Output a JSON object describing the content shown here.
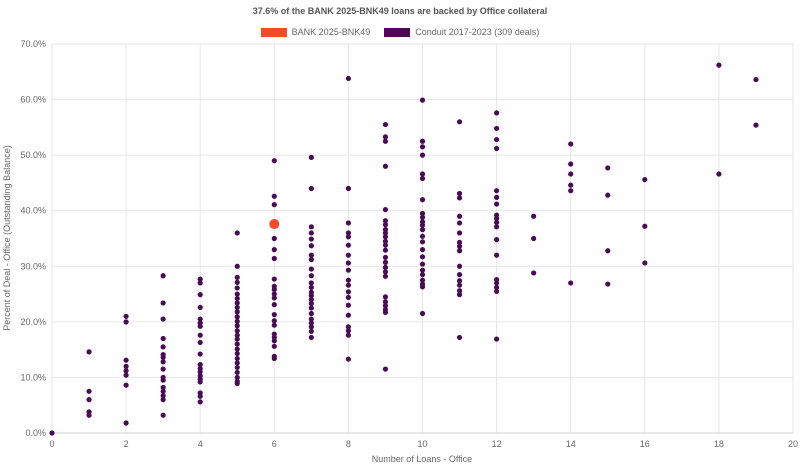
{
  "chart_data": {
    "type": "scatter",
    "title": "37.6% of the BANK 2025-BNK49 loans are backed by Office collateral",
    "xlabel": "Number of Loans - Office",
    "ylabel": "Percent of Deal - Office (Outstanding Balance)",
    "xlim": [
      0,
      20
    ],
    "ylim": [
      0,
      70
    ],
    "x_ticks": [
      "0",
      "2",
      "4",
      "6",
      "8",
      "10",
      "12",
      "14",
      "16",
      "18",
      "20"
    ],
    "y_ticks": [
      "0.0%",
      "10.0%",
      "20.0%",
      "30.0%",
      "40.0%",
      "50.0%",
      "60.0%",
      "70.0%"
    ],
    "grid": true,
    "legend_position": "top",
    "series": [
      {
        "name": "BANK 2025-BNK49",
        "color": "#f4492b",
        "points": [
          [
            6,
            37.6
          ]
        ]
      },
      {
        "name": "Conduit 2017-2023 (309 deals)",
        "color": "#4b0a55",
        "points": [
          [
            0,
            0
          ],
          [
            1,
            14.6
          ],
          [
            1,
            7.5
          ],
          [
            1,
            6.0
          ],
          [
            1,
            3.8
          ],
          [
            1,
            3.2
          ],
          [
            2,
            21.0
          ],
          [
            2,
            20.0
          ],
          [
            2,
            13.1
          ],
          [
            2,
            12.0
          ],
          [
            2,
            11.2
          ],
          [
            2,
            10.4
          ],
          [
            2,
            8.6
          ],
          [
            2,
            1.8
          ],
          [
            3,
            28.3
          ],
          [
            3,
            23.4
          ],
          [
            3,
            20.5
          ],
          [
            3,
            17.0
          ],
          [
            3,
            15.5
          ],
          [
            3,
            14.1
          ],
          [
            3,
            13.6
          ],
          [
            3,
            12.8
          ],
          [
            3,
            11.5
          ],
          [
            3,
            10.0
          ],
          [
            3,
            9.5
          ],
          [
            3,
            8.2
          ],
          [
            3,
            7.5
          ],
          [
            3,
            6.7
          ],
          [
            3,
            6.0
          ],
          [
            3,
            3.2
          ],
          [
            4,
            27.7
          ],
          [
            4,
            27.0
          ],
          [
            4,
            24.9
          ],
          [
            4,
            22.6
          ],
          [
            4,
            20.5
          ],
          [
            4,
            19.8
          ],
          [
            4,
            19.2
          ],
          [
            4,
            17.6
          ],
          [
            4,
            16.3
          ],
          [
            4,
            14.2
          ],
          [
            4,
            12.3
          ],
          [
            4,
            11.6
          ],
          [
            4,
            11.0
          ],
          [
            4,
            10.3
          ],
          [
            4,
            9.7
          ],
          [
            4,
            9.2
          ],
          [
            4,
            7.2
          ],
          [
            4,
            6.6
          ],
          [
            4,
            5.6
          ],
          [
            5,
            36.0
          ],
          [
            5,
            30.0
          ],
          [
            5,
            28.0
          ],
          [
            5,
            27.1
          ],
          [
            5,
            26.1
          ],
          [
            5,
            25.0
          ],
          [
            5,
            24.2
          ],
          [
            5,
            23.4
          ],
          [
            5,
            22.6
          ],
          [
            5,
            21.8
          ],
          [
            5,
            20.9
          ],
          [
            5,
            20.1
          ],
          [
            5,
            19.3
          ],
          [
            5,
            18.4
          ],
          [
            5,
            17.6
          ],
          [
            5,
            16.9
          ],
          [
            5,
            16.0
          ],
          [
            5,
            15.1
          ],
          [
            5,
            14.3
          ],
          [
            5,
            13.4
          ],
          [
            5,
            12.6
          ],
          [
            5,
            11.8
          ],
          [
            5,
            10.9
          ],
          [
            5,
            10.0
          ],
          [
            5,
            9.3
          ],
          [
            5,
            8.9
          ],
          [
            6,
            49.0
          ],
          [
            6,
            42.6
          ],
          [
            6,
            41.1
          ],
          [
            6,
            35.0
          ],
          [
            6,
            33.0
          ],
          [
            6,
            31.4
          ],
          [
            6,
            27.7
          ],
          [
            6,
            26.4
          ],
          [
            6,
            25.8
          ],
          [
            6,
            25.0
          ],
          [
            6,
            24.3
          ],
          [
            6,
            23.1
          ],
          [
            6,
            21.3
          ],
          [
            6,
            20.2
          ],
          [
            6,
            19.4
          ],
          [
            6,
            17.8
          ],
          [
            6,
            17.2
          ],
          [
            6,
            16.6
          ],
          [
            6,
            15.6
          ],
          [
            6,
            13.8
          ],
          [
            6,
            13.4
          ],
          [
            7,
            49.6
          ],
          [
            7,
            44.0
          ],
          [
            7,
            37.1
          ],
          [
            7,
            36.0
          ],
          [
            7,
            34.9
          ],
          [
            7,
            33.7
          ],
          [
            7,
            32.0
          ],
          [
            7,
            31.2
          ],
          [
            7,
            29.5
          ],
          [
            7,
            28.3
          ],
          [
            7,
            27.0
          ],
          [
            7,
            26.2
          ],
          [
            7,
            25.3
          ],
          [
            7,
            24.7
          ],
          [
            7,
            24.0
          ],
          [
            7,
            23.3
          ],
          [
            7,
            22.5
          ],
          [
            7,
            21.5
          ],
          [
            7,
            20.5
          ],
          [
            7,
            19.8
          ],
          [
            7,
            19.1
          ],
          [
            7,
            18.3
          ],
          [
            7,
            17.2
          ],
          [
            8,
            63.8
          ],
          [
            8,
            44.0
          ],
          [
            8,
            37.8
          ],
          [
            8,
            36.0
          ],
          [
            8,
            35.3
          ],
          [
            8,
            33.8
          ],
          [
            8,
            32.0
          ],
          [
            8,
            30.6
          ],
          [
            8,
            29.3
          ],
          [
            8,
            27.5
          ],
          [
            8,
            26.6
          ],
          [
            8,
            25.4
          ],
          [
            8,
            24.4
          ],
          [
            8,
            23.0
          ],
          [
            8,
            21.2
          ],
          [
            8,
            19.1
          ],
          [
            8,
            18.4
          ],
          [
            8,
            17.6
          ],
          [
            8,
            13.3
          ],
          [
            9,
            55.5
          ],
          [
            9,
            53.3
          ],
          [
            9,
            52.5
          ],
          [
            9,
            48.0
          ],
          [
            9,
            40.2
          ],
          [
            9,
            38.2
          ],
          [
            9,
            37.5
          ],
          [
            9,
            36.6
          ],
          [
            9,
            36.0
          ],
          [
            9,
            35.3
          ],
          [
            9,
            34.5
          ],
          [
            9,
            33.8
          ],
          [
            9,
            32.9
          ],
          [
            9,
            31.6
          ],
          [
            9,
            30.7
          ],
          [
            9,
            29.8
          ],
          [
            9,
            29.0
          ],
          [
            9,
            28.2
          ],
          [
            9,
            24.5
          ],
          [
            9,
            23.6
          ],
          [
            9,
            22.9
          ],
          [
            9,
            22.2
          ],
          [
            9,
            21.7
          ],
          [
            9,
            11.5
          ],
          [
            10,
            59.9
          ],
          [
            10,
            52.5
          ],
          [
            10,
            51.5
          ],
          [
            10,
            50.0
          ],
          [
            10,
            46.6
          ],
          [
            10,
            45.8
          ],
          [
            10,
            42.0
          ],
          [
            10,
            39.5
          ],
          [
            10,
            38.8
          ],
          [
            10,
            38.0
          ],
          [
            10,
            37.4
          ],
          [
            10,
            36.6
          ],
          [
            10,
            35.4
          ],
          [
            10,
            34.4
          ],
          [
            10,
            33.0
          ],
          [
            10,
            31.7
          ],
          [
            10,
            30.4
          ],
          [
            10,
            29.3
          ],
          [
            10,
            28.5
          ],
          [
            10,
            27.5
          ],
          [
            10,
            26.8
          ],
          [
            10,
            26.3
          ],
          [
            10,
            21.5
          ],
          [
            11,
            56.0
          ],
          [
            11,
            43.1
          ],
          [
            11,
            42.3
          ],
          [
            11,
            39.0
          ],
          [
            11,
            37.8
          ],
          [
            11,
            36.0
          ],
          [
            11,
            34.3
          ],
          [
            11,
            33.6
          ],
          [
            11,
            32.8
          ],
          [
            11,
            30.0
          ],
          [
            11,
            28.5
          ],
          [
            11,
            27.4
          ],
          [
            11,
            26.6
          ],
          [
            11,
            25.6
          ],
          [
            11,
            24.9
          ],
          [
            11,
            17.2
          ],
          [
            12,
            57.6
          ],
          [
            12,
            54.8
          ],
          [
            12,
            52.8
          ],
          [
            12,
            51.2
          ],
          [
            12,
            43.6
          ],
          [
            12,
            42.4
          ],
          [
            12,
            41.2
          ],
          [
            12,
            39.2
          ],
          [
            12,
            38.6
          ],
          [
            12,
            37.9
          ],
          [
            12,
            37.1
          ],
          [
            12,
            34.8
          ],
          [
            12,
            32.0
          ],
          [
            12,
            27.6
          ],
          [
            12,
            27.0
          ],
          [
            12,
            26.2
          ],
          [
            12,
            25.5
          ],
          [
            12,
            16.9
          ],
          [
            13,
            39.0
          ],
          [
            13,
            35.0
          ],
          [
            13,
            28.8
          ],
          [
            14,
            52.0
          ],
          [
            14,
            48.4
          ],
          [
            14,
            46.6
          ],
          [
            14,
            44.6
          ],
          [
            14,
            43.6
          ],
          [
            14,
            27.0
          ],
          [
            15,
            47.7
          ],
          [
            15,
            42.8
          ],
          [
            15,
            32.8
          ],
          [
            15,
            26.8
          ],
          [
            16,
            45.6
          ],
          [
            16,
            37.2
          ],
          [
            16,
            30.6
          ],
          [
            18,
            66.2
          ],
          [
            18,
            46.6
          ],
          [
            19,
            63.6
          ],
          [
            19,
            55.4
          ]
        ]
      }
    ]
  }
}
